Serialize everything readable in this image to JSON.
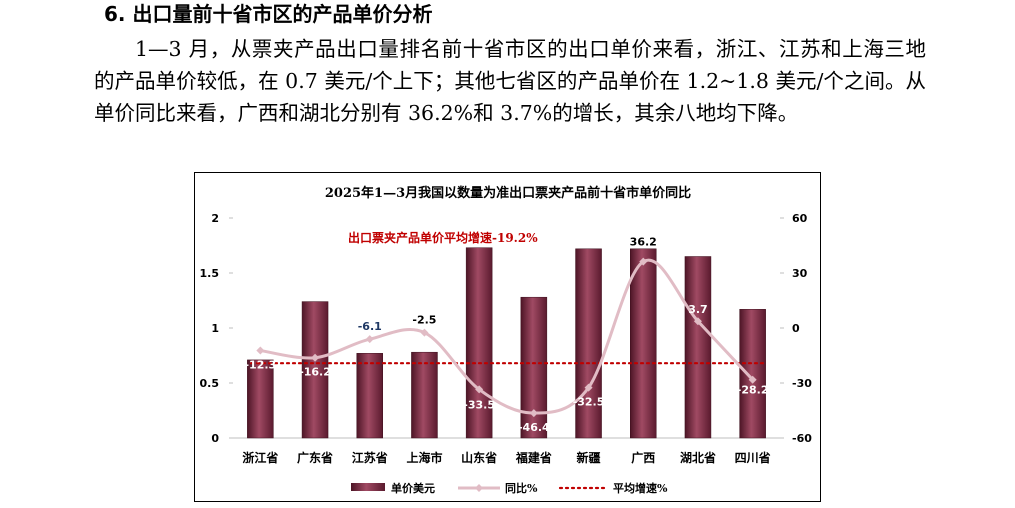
{
  "section": {
    "heading": "6. 出口量前十省市区的产品单价分析",
    "paragraph": "1—3 月，从票夹产品出口量排名前十省市区的出口单价来看，浙江、江苏和上海三地的产品单价较低，在 0.7 美元/个上下；其他七省区的产品单价在 1.2~1.8 美元/个之间。从单价同比来看，广西和湖北分别有 36.2%和 3.7%的增长，其余八地均下降。"
  },
  "chart_data": {
    "type": "bar",
    "title": "2025年1—3月我国以数量为准出口票夹产品前十省市单价同比",
    "categories": [
      "浙江省",
      "广东省",
      "江苏省",
      "上海市",
      "山东省",
      "福建省",
      "新疆",
      "广西",
      "湖北省",
      "四川省"
    ],
    "series": [
      {
        "name": "单价美元",
        "type": "bar",
        "axis": "left",
        "color": "#7b2c45",
        "values": [
          0.71,
          1.24,
          0.77,
          0.78,
          1.73,
          1.28,
          1.72,
          1.72,
          1.65,
          1.17
        ]
      },
      {
        "name": "同比%",
        "type": "line",
        "axis": "right",
        "color": "#e1bcc5",
        "values": [
          -12.3,
          -16.2,
          -6.1,
          -2.5,
          -33.5,
          -46.4,
          -32.5,
          36.2,
          3.7,
          -28.2
        ],
        "labels": [
          "-12.3",
          "-16.2",
          "-6.1",
          "-2.5",
          "-33.5",
          "-46.4",
          "-32.5",
          "36.2",
          "3.7",
          "-28.2"
        ]
      },
      {
        "name": "平均增速%",
        "type": "line",
        "axis": "right",
        "color": "#c00000",
        "style": "dotted",
        "value": -19.2
      }
    ],
    "annotation": "出口票夹产品单价平均增速-19.2%",
    "annotation_color": "#c00000",
    "y_left": {
      "ylim": [
        0,
        2
      ],
      "ticks": [
        "0",
        "0.5",
        "1",
        "1.5",
        "2"
      ],
      "tick_values": [
        0,
        0.5,
        1,
        1.5,
        2
      ]
    },
    "y_right": {
      "ylim": [
        -60,
        60
      ],
      "ticks": [
        "-60",
        "-30",
        "0",
        "30",
        "60"
      ],
      "tick_values": [
        -60,
        -30,
        0,
        30,
        60
      ]
    },
    "grid": false,
    "legend_position": "bottom"
  }
}
